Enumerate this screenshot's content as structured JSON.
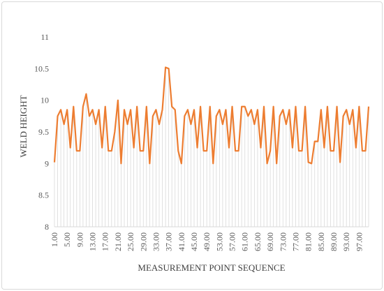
{
  "chart_data": {
    "type": "line",
    "xlabel": "MEASUREMENT POINT SEQUENCE",
    "ylabel": "WELD HEIGHT",
    "ylim": [
      8,
      11
    ],
    "yticks": [
      "8",
      "8.5",
      "9",
      "9.5",
      "10",
      "10.5",
      "11"
    ],
    "xtick_labels": [
      "1.00",
      "5.00",
      "9.00",
      "13.00",
      "17.00",
      "21.00",
      "25.00",
      "29.00",
      "33.00",
      "37.00",
      "41.00",
      "45.00",
      "49.00",
      "53.00",
      "57.00",
      "61.00",
      "65.00",
      "69.00",
      "73.00",
      "77.00",
      "81.00",
      "85.00",
      "89.00",
      "93.00",
      "97.00"
    ],
    "xtick_step": 4,
    "grid": "vertical lines at every point",
    "legend": "none",
    "series": [
      {
        "color": "#ED7D31",
        "values": [
          9.02,
          9.75,
          9.85,
          9.62,
          9.85,
          9.25,
          9.9,
          9.2,
          9.2,
          9.9,
          10.1,
          9.75,
          9.85,
          9.62,
          9.85,
          9.25,
          9.9,
          9.2,
          9.2,
          9.5,
          10.0,
          9.0,
          9.85,
          9.62,
          9.85,
          9.25,
          9.9,
          9.2,
          9.2,
          9.9,
          9.0,
          9.75,
          9.85,
          9.62,
          9.85,
          10.52,
          10.5,
          9.9,
          9.85,
          9.2,
          9.0,
          9.75,
          9.85,
          9.62,
          9.85,
          9.25,
          9.9,
          9.2,
          9.2,
          9.9,
          9.0,
          9.75,
          9.85,
          9.62,
          9.85,
          9.25,
          9.9,
          9.2,
          9.2,
          9.9,
          9.9,
          9.75,
          9.85,
          9.62,
          9.85,
          9.25,
          9.9,
          9.0,
          9.2,
          9.9,
          9.0,
          9.75,
          9.85,
          9.62,
          9.85,
          9.25,
          9.9,
          9.2,
          9.2,
          9.9,
          9.02,
          9.0,
          9.35,
          9.35,
          9.85,
          9.25,
          9.9,
          9.2,
          9.2,
          9.9,
          9.02,
          9.75,
          9.85,
          9.62,
          9.85,
          9.25,
          9.9,
          9.2,
          9.2,
          9.9
        ]
      }
    ]
  }
}
